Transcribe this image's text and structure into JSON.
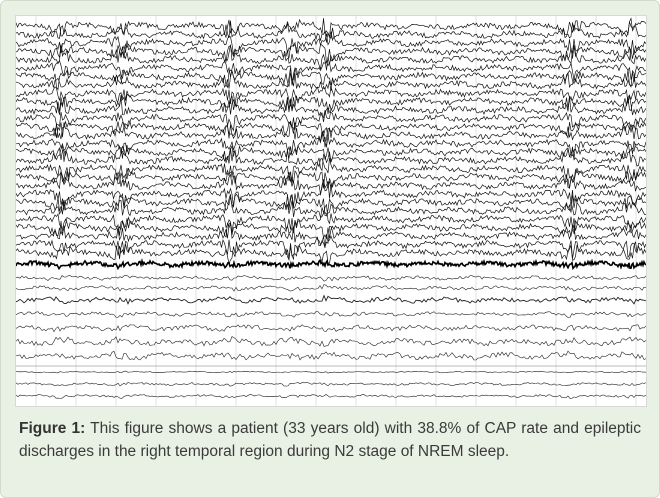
{
  "figure": {
    "label": "Figure 1:",
    "caption": "This figure shows a patient (33 years old) with 38.8% of CAP rate and epileptic discharges in the right temporal region during N2 stage of NREM sleep."
  }
}
